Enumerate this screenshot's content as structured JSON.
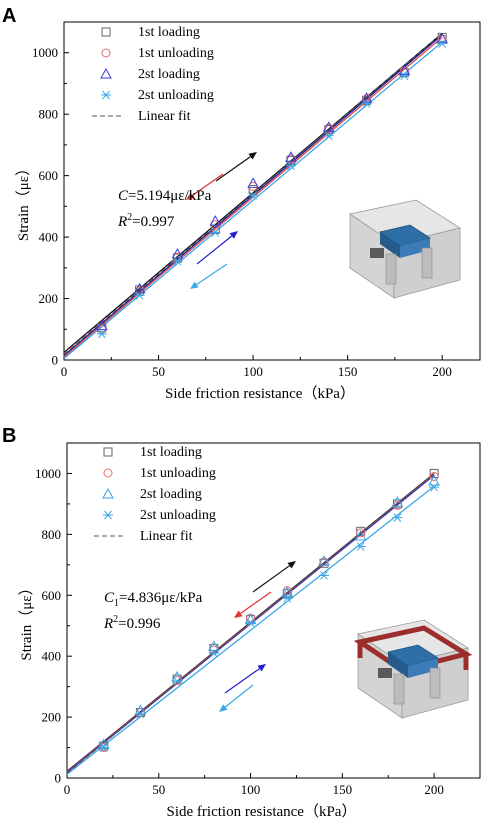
{
  "chart_data": [
    {
      "panel_label": "A",
      "type": "scatter",
      "xlabel": "Side friction resistance（kPa）",
      "ylabel": "Strain（με）",
      "xlim": [
        0,
        220
      ],
      "ylim": [
        0,
        1100
      ],
      "xticks": [
        "0",
        "50",
        "100",
        "150",
        "200"
      ],
      "yticks": [
        "0",
        "200",
        "400",
        "600",
        "800",
        "1000"
      ],
      "legend": {
        "position": "top-left",
        "entries": [
          "1st  loading",
          "1st  unloading",
          "2st  loading",
          "2st  unloading",
          "Linear fit"
        ]
      },
      "annotation": {
        "coef_symbol": "C",
        "coef_sub": "",
        "coef_value": "=5.194με/kPa",
        "r2_symbol": "R",
        "r2_exp": "2",
        "r2_value": "=0.997"
      },
      "series": [
        {
          "name": "1st  loading",
          "marker": "square",
          "color": "#666666",
          "x": [
            20,
            40,
            60,
            80,
            100,
            120,
            140,
            160,
            180,
            200
          ],
          "y": [
            105,
            228,
            332,
            425,
            555,
            650,
            750,
            845,
            935,
            1050
          ]
        },
        {
          "name": "1st  unloading",
          "marker": "circle",
          "color": "#e86a6a",
          "x": [
            20,
            40,
            60,
            80,
            100,
            120,
            140,
            160,
            180,
            200
          ],
          "y": [
            100,
            225,
            335,
            440,
            565,
            655,
            755,
            850,
            940,
            1045
          ]
        },
        {
          "name": "2st  loading",
          "marker": "triangle",
          "color": "#3b3bd6",
          "x": [
            20,
            40,
            60,
            80,
            100,
            120,
            140,
            160,
            180,
            200
          ],
          "y": [
            112,
            232,
            345,
            452,
            575,
            660,
            757,
            852,
            942,
            1045
          ]
        },
        {
          "name": "2st  unloading",
          "marker": "asterisk",
          "color": "#3aa8e8",
          "x": [
            20,
            40,
            60,
            80,
            100,
            120,
            140,
            160,
            180,
            200
          ],
          "y": [
            85,
            210,
            322,
            415,
            535,
            632,
            730,
            835,
            925,
            1030
          ]
        }
      ],
      "fit_lines": [
        {
          "color": "#111111",
          "x": [
            0,
            200
          ],
          "y": [
            25,
            1063
          ]
        },
        {
          "color": "#1a1aa0",
          "x": [
            0,
            200
          ],
          "y": [
            15,
            1058
          ]
        },
        {
          "color": "#e04a4a",
          "x": [
            0,
            200
          ],
          "y": [
            10,
            1050
          ]
        },
        {
          "color": "#3aa8e8",
          "x": [
            0,
            200
          ],
          "y": [
            5,
            1035
          ]
        }
      ]
    },
    {
      "panel_label": "B",
      "type": "scatter",
      "xlabel": "Side friction resistance（kPa）",
      "ylabel": "Strain（με）",
      "xlim": [
        0,
        225
      ],
      "ylim": [
        0,
        1100
      ],
      "xticks": [
        "0",
        "50",
        "100",
        "150",
        "200"
      ],
      "yticks": [
        "0",
        "200",
        "400",
        "600",
        "800",
        "1000"
      ],
      "legend": {
        "position": "top-left",
        "entries": [
          "1st loading",
          "1st unloading",
          "2st loading",
          "2st unloading",
          "Linear fit"
        ]
      },
      "annotation": {
        "coef_symbol": "C",
        "coef_sub": "1",
        "coef_value": "=4.836με/kPa",
        "r2_symbol": "R",
        "r2_exp": "2",
        "r2_value": "=0.996"
      },
      "series": [
        {
          "name": "1st loading",
          "marker": "square",
          "color": "#666666",
          "x": [
            20,
            40,
            60,
            80,
            100,
            120,
            140,
            160,
            180,
            200
          ],
          "y": [
            105,
            215,
            325,
            425,
            520,
            605,
            705,
            810,
            900,
            1000
          ]
        },
        {
          "name": "1st unloading",
          "marker": "circle",
          "color": "#e86a6a",
          "x": [
            20,
            40,
            60,
            80,
            100,
            120,
            140,
            160,
            180,
            200
          ],
          "y": [
            100,
            215,
            320,
            420,
            525,
            615,
            710,
            805,
            895,
            990
          ]
        },
        {
          "name": "2st loading",
          "marker": "triangle",
          "color": "#3aa0e8",
          "x": [
            20,
            40,
            60,
            80,
            100,
            120,
            140,
            160,
            180,
            200
          ],
          "y": [
            110,
            222,
            332,
            432,
            520,
            610,
            712,
            795,
            905,
            975
          ]
        },
        {
          "name": "2st unloading",
          "marker": "asterisk",
          "color": "#3aa8e8",
          "x": [
            20,
            40,
            60,
            80,
            100,
            120,
            140,
            160,
            180,
            200
          ],
          "y": [
            100,
            210,
            318,
            410,
            510,
            590,
            665,
            760,
            855,
            955
          ]
        }
      ],
      "fit_lines": [
        {
          "color": "#111111",
          "x": [
            0,
            200
          ],
          "y": [
            22,
            1000
          ]
        },
        {
          "color": "#e04a4a",
          "x": [
            0,
            200
          ],
          "y": [
            20,
            997
          ]
        },
        {
          "color": "#3a3ab8",
          "x": [
            0,
            200
          ],
          "y": [
            18,
            994
          ]
        },
        {
          "color": "#3aa8e8",
          "x": [
            0,
            200
          ],
          "y": [
            12,
            958
          ]
        }
      ]
    }
  ]
}
